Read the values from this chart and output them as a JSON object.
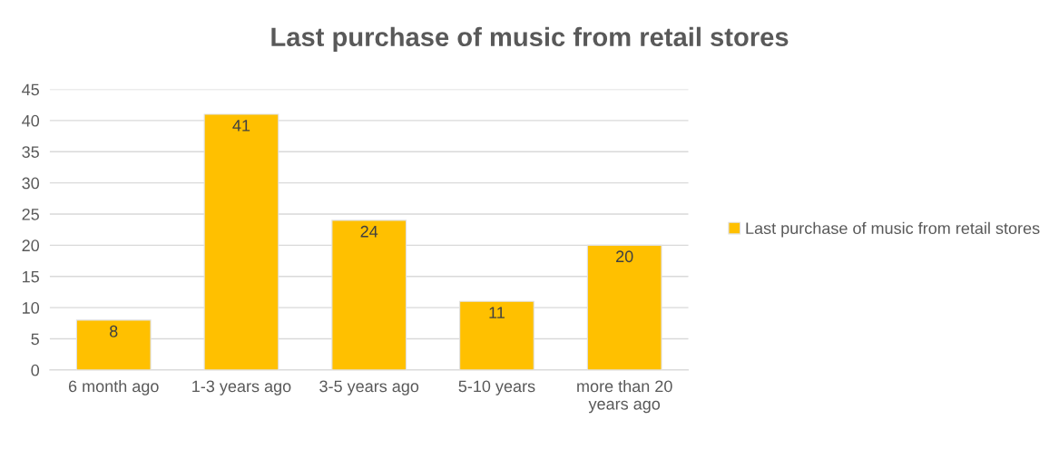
{
  "chart_data": {
    "type": "bar",
    "title": "Last purchase of music from retail stores",
    "categories": [
      "6 month ago",
      "1-3 years ago",
      "3-5 years ago",
      "5-10 years",
      "more than 20\nyears ago"
    ],
    "series": [
      {
        "name": "Last purchase of music from retail stores",
        "color": "#ffc000",
        "values": [
          8,
          41,
          24,
          11,
          20
        ]
      }
    ],
    "ylim": [
      0,
      45
    ],
    "yticks": [
      0,
      5,
      10,
      15,
      20,
      25,
      30,
      35,
      40,
      45
    ],
    "grid": "y",
    "legend": "right",
    "data_labels": true
  }
}
